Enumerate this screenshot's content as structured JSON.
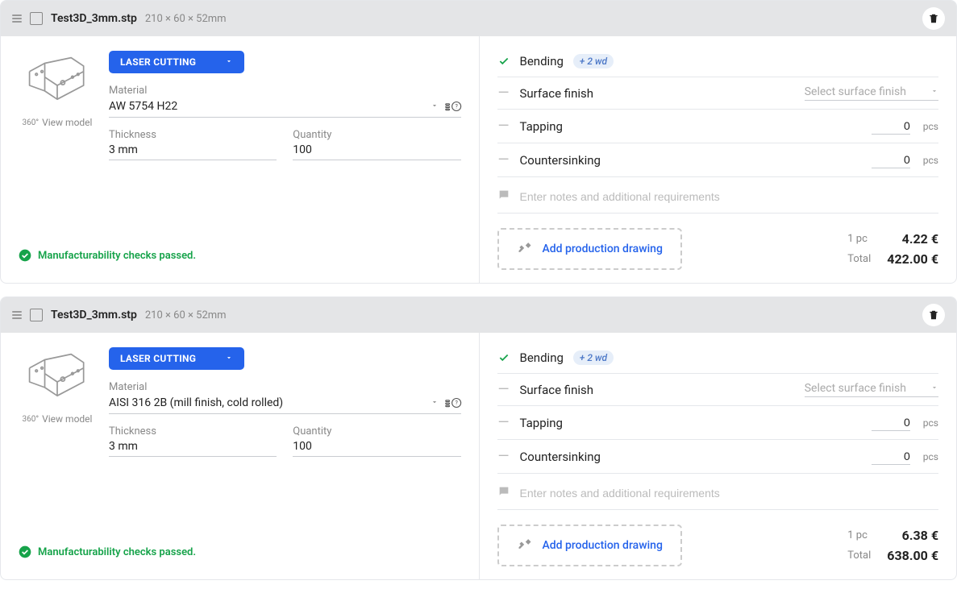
{
  "colors": {
    "accent": "#2563eb",
    "header_bg": "#e4e5e7",
    "success": "#16a34a",
    "muted": "#888888",
    "border": "#e5e7eb",
    "badge_bg": "#e6eef9",
    "badge_text": "#4b77c7"
  },
  "ui": {
    "view_model": "View model",
    "material_label": "Material",
    "thickness_label": "Thickness",
    "quantity_label": "Quantity",
    "add_drawing": "Add production drawing",
    "notes_placeholder": "Enter notes and additional requirements",
    "mfg_check": "Manufacturability checks passed.",
    "price_1pc": "1 pc",
    "price_total": "Total",
    "select_finish": "Select surface finish",
    "pcs_unit": "pcs"
  },
  "options": {
    "bending": "Bending",
    "surface_finish": "Surface finish",
    "tapping": "Tapping",
    "countersinking": "Countersinking"
  },
  "parts": [
    {
      "filename": "Test3D_3mm.stp",
      "dimensions": "210 × 60 × 52mm",
      "process": "LASER CUTTING",
      "material": "AW 5754 H22",
      "thickness": "3 mm",
      "quantity": "100",
      "bending_badge": "+ 2 wd",
      "tapping_qty": "0",
      "countersink_qty": "0",
      "price_1pc": "4.22 €",
      "price_total": "422.00 €"
    },
    {
      "filename": "Test3D_3mm.stp",
      "dimensions": "210 × 60 × 52mm",
      "process": "LASER CUTTING",
      "material": "AISI 316 2B (mill finish, cold rolled)",
      "thickness": "3 mm",
      "quantity": "100",
      "bending_badge": "+ 2 wd",
      "tapping_qty": "0",
      "countersink_qty": "0",
      "price_1pc": "6.38 €",
      "price_total": "638.00 €"
    }
  ]
}
